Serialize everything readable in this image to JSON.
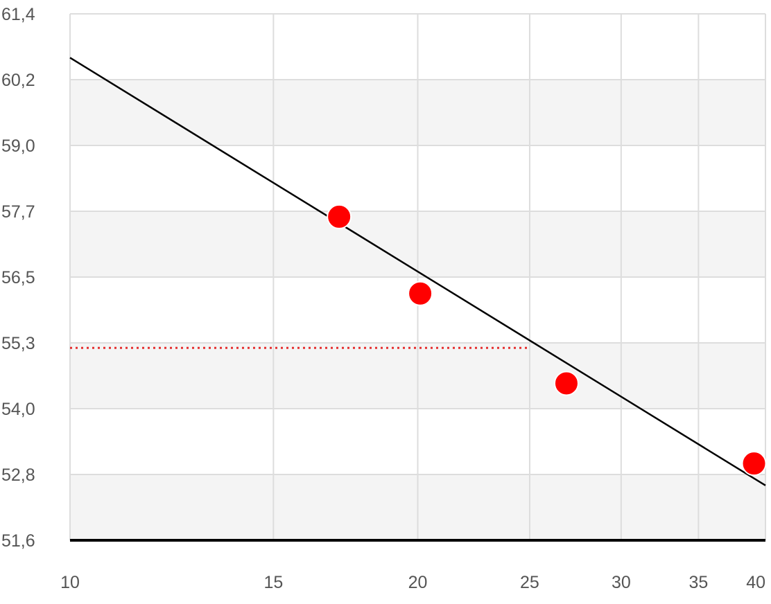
{
  "chart_data": {
    "type": "scatter",
    "title": "",
    "xlabel": "",
    "ylabel": "",
    "x_scale": "log",
    "xlim": [
      10,
      40
    ],
    "ylim": [
      51.6,
      61.4
    ],
    "x_ticks": [
      10,
      15,
      20,
      25,
      30,
      35,
      40
    ],
    "x_tick_labels": [
      "10",
      "15",
      "20",
      "25",
      "30",
      "35",
      "40"
    ],
    "y_ticks": [
      51.6,
      52.8,
      54.0,
      55.3,
      56.5,
      57.7,
      59.0,
      60.2,
      61.4
    ],
    "y_tick_labels": [
      "51,6",
      "52,8",
      "54,0",
      "55,3",
      "56,5",
      "57,7",
      "59,0",
      "60,2",
      "61,4"
    ],
    "grid": true,
    "alternating_bands": true,
    "points": [
      {
        "x": 17.1,
        "y": 57.6
      },
      {
        "x": 20.1,
        "y": 56.2
      },
      {
        "x": 26.9,
        "y": 54.5
      },
      {
        "x": 39.1,
        "y": 53.0
      }
    ],
    "trend_line": {
      "from": {
        "x": 10,
        "y": 60.6
      },
      "to": {
        "x": 40,
        "y": 52.6
      }
    },
    "reference_line": {
      "y": 55.2,
      "x_end": 25.0,
      "style": "dotted"
    },
    "colors": {
      "points": "#ff0000",
      "trend_line": "#000000",
      "reference_line": "#e53030",
      "grid": "#dddddd",
      "band": "#f4f4f4",
      "axis": "#000000",
      "tick_text": "#555555"
    }
  }
}
